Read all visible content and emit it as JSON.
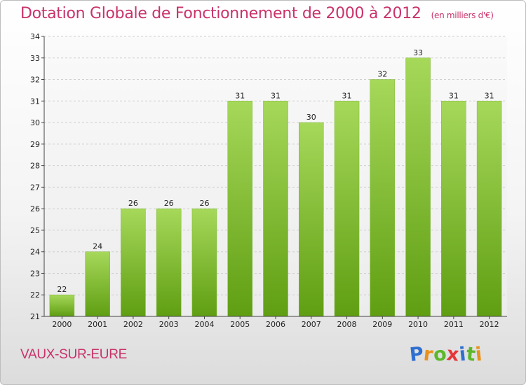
{
  "title": "Dotation Globale de Fonctionnement de 2000 à 2012",
  "subtitle": "(en milliers d'€)",
  "commune": "VAUX-SUR-EURE",
  "logo": {
    "text": "Proxiti",
    "letters": [
      "P",
      "r",
      "o",
      "x",
      "i",
      "t",
      "i"
    ],
    "colors": [
      "#2f6fd0",
      "#e8921c",
      "#5cb82a",
      "#e5383b",
      "#2f6fd0",
      "#5cb82a",
      "#e8921c"
    ]
  },
  "chart_data": {
    "type": "bar",
    "categories": [
      "2000",
      "2001",
      "2002",
      "2003",
      "2004",
      "2005",
      "2006",
      "2007",
      "2008",
      "2009",
      "2010",
      "2011",
      "2012"
    ],
    "values": [
      22,
      24,
      26,
      26,
      26,
      31,
      31,
      30,
      31,
      32,
      33,
      31,
      31
    ],
    "title": "Dotation Globale de Fonctionnement de 2000 à 2012",
    "subtitle": "(en milliers d'€)",
    "xlabel": "",
    "ylabel": "",
    "ylim": [
      21,
      34
    ],
    "yticks": [
      21,
      22,
      23,
      24,
      25,
      26,
      27,
      28,
      29,
      30,
      31,
      32,
      33,
      34
    ],
    "grid": true,
    "bar_color_top": "#a6d85a",
    "bar_color_bottom": "#5f9e12"
  }
}
